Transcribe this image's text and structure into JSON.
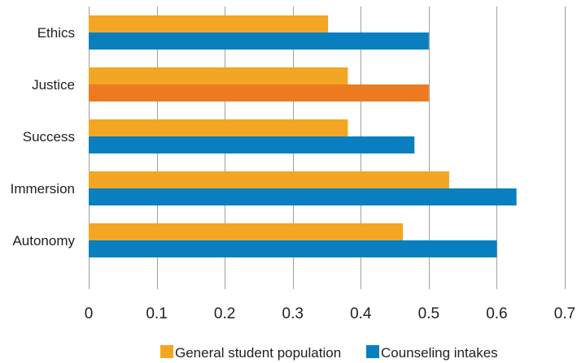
{
  "chart_data": {
    "type": "bar",
    "orientation": "horizontal",
    "categories": [
      "Ethics",
      "Justice",
      "Success",
      "Immersion",
      "Autonomy"
    ],
    "series": [
      {
        "name": "General student population",
        "color": "#f2a623",
        "values": [
          0.352,
          0.381,
          0.381,
          0.53,
          0.462
        ]
      },
      {
        "name": "Counseling intakes",
        "color": "#0a7fc0",
        "values": [
          0.5,
          0.5,
          0.479,
          0.629,
          0.6
        ],
        "highlight": {
          "category": "Justice",
          "color": "#ee7a20"
        }
      }
    ],
    "xlim": [
      0,
      0.7
    ],
    "xticks": [
      "0",
      "0.1",
      "0.2",
      "0.3",
      "0.4",
      "0.5",
      "0.6",
      "0.7"
    ],
    "grid": "vertical",
    "legend_position": "bottom"
  }
}
